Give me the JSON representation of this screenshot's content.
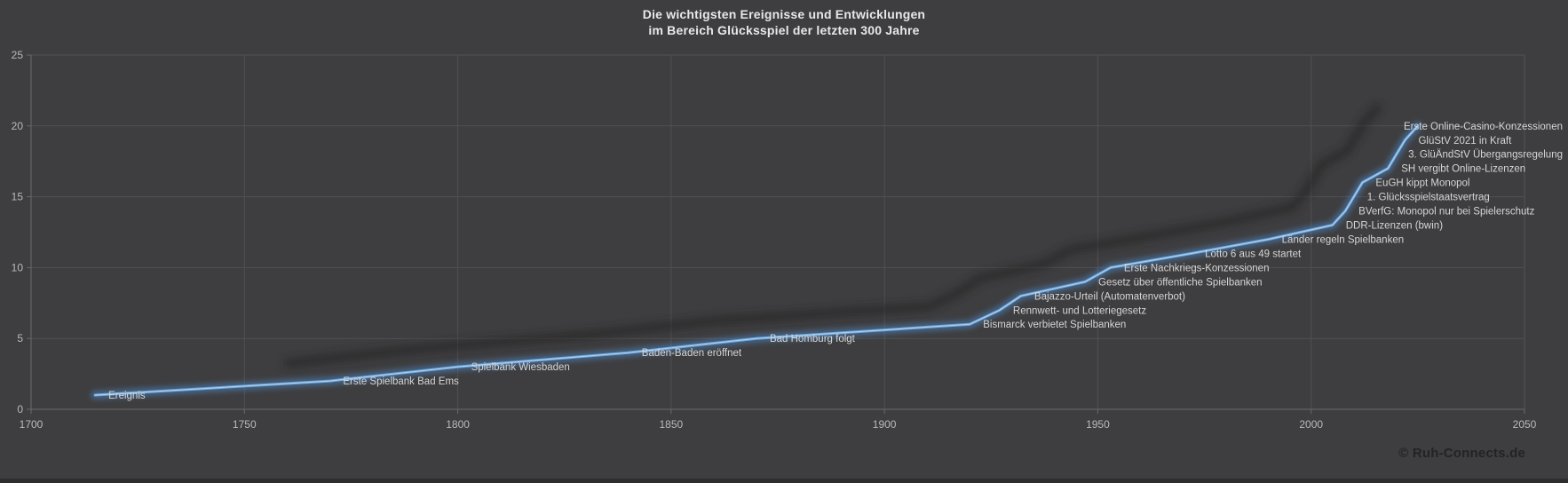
{
  "title": {
    "line1": "Die wichtigsten Ereignisse und Entwicklungen",
    "line2": "im Bereich Glücksspiel der letzten 300 Jahre"
  },
  "footer": {
    "copyright": "© Ruh-Connects.de"
  },
  "colors": {
    "background": "#3e3e40",
    "grid": "#515153",
    "axis": "#6a6a6c",
    "tick_text": "#b9b9b9",
    "label_text": "#d5d5d5",
    "title_text": "#e8e8e8",
    "line_main": "#6aa6de",
    "line_core": "#b7d4ee",
    "line_glow": "#4f87c5",
    "line_shadow": "#222224",
    "copyright_text": "#232325",
    "footer_band": "#2e2e30"
  },
  "chart_data": {
    "type": "line",
    "title": "Die wichtigsten Ereignisse und Entwicklungen im Bereich Glücksspiel der letzten 300 Jahre",
    "xlabel": "",
    "ylabel": "",
    "xlim": [
      1700,
      2050
    ],
    "ylim": [
      0,
      25
    ],
    "x_ticks": [
      1700,
      1750,
      1800,
      1850,
      1900,
      1950,
      2000,
      2050
    ],
    "y_ticks": [
      0,
      5,
      10,
      15,
      20,
      25
    ],
    "grid": true,
    "legend": false,
    "series_name": "Ereignis",
    "points": [
      {
        "label": "Ereignis",
        "x": 1715,
        "y": 1
      },
      {
        "label": "Erste Spielbank Bad Ems",
        "x": 1770,
        "y": 2
      },
      {
        "label": "Spielbank Wiesbaden",
        "x": 1800,
        "y": 3
      },
      {
        "label": "Baden-Baden eröffnet",
        "x": 1840,
        "y": 4
      },
      {
        "label": "Bad Homburg folgt",
        "x": 1870,
        "y": 5
      },
      {
        "label": "Bismarck verbietet Spielbanken",
        "x": 1920,
        "y": 6
      },
      {
        "label": "Rennwett- und Lotteriegesetz",
        "x": 1927,
        "y": 7
      },
      {
        "label": "Bajazzo-Urteil (Automatenverbot)",
        "x": 1932,
        "y": 8
      },
      {
        "label": "Gesetz über öffentliche Spielbanken",
        "x": 1947,
        "y": 9
      },
      {
        "label": "Erste Nachkriegs-Konzessionen",
        "x": 1953,
        "y": 10
      },
      {
        "label": "Lotto 6 aus 49 startet",
        "x": 1972,
        "y": 11
      },
      {
        "label": "Länder regeln Spielbanken",
        "x": 1990,
        "y": 12
      },
      {
        "label": "DDR-Lizenzen (bwin)",
        "x": 2005,
        "y": 13
      },
      {
        "label": "BVerfG: Monopol nur bei Spielerschutz",
        "x": 2008,
        "y": 14
      },
      {
        "label": "1. Glücksspielstaatsvertrag",
        "x": 2010,
        "y": 15
      },
      {
        "label": "EuGH kippt Monopol",
        "x": 2012,
        "y": 16
      },
      {
        "label": "SH vergibt Online-Lizenzen",
        "x": 2018,
        "y": 17
      },
      {
        "label": "3. GlüÄndStV Übergangsregelung",
        "x": 2020,
        "y": 18
      },
      {
        "label": "GlüStV 2021 in Kraft",
        "x": 2022,
        "y": 19
      },
      {
        "label": "Erste Online-Casino-Konzessionen",
        "x": 2025,
        "y": 20
      }
    ]
  }
}
